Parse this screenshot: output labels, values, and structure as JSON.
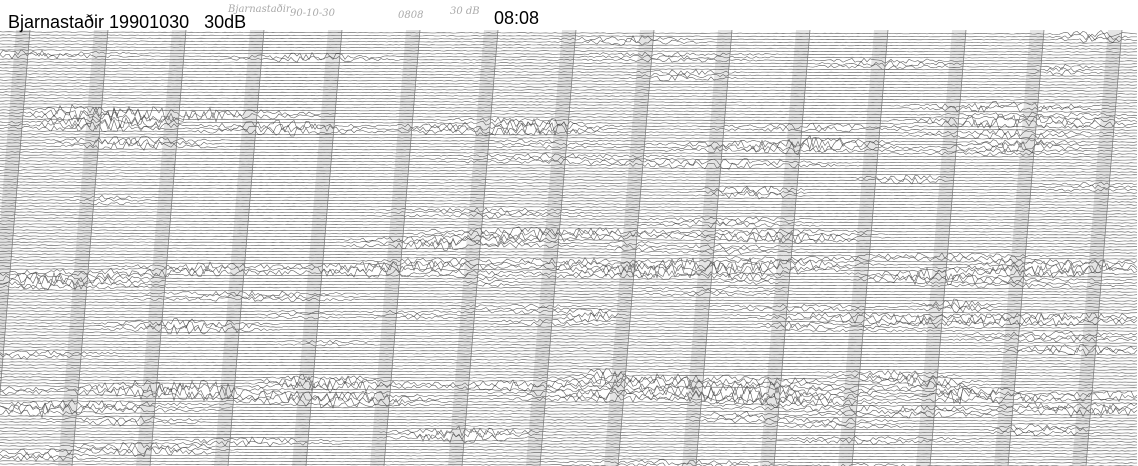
{
  "header": {
    "title": "Bjarnastaðir 19901030   30dB",
    "time": "08:08"
  },
  "handwritten": {
    "station": "Bjarnastaðir",
    "date": "90-10-30",
    "time": "0808",
    "gain": "30 dB"
  }
}
